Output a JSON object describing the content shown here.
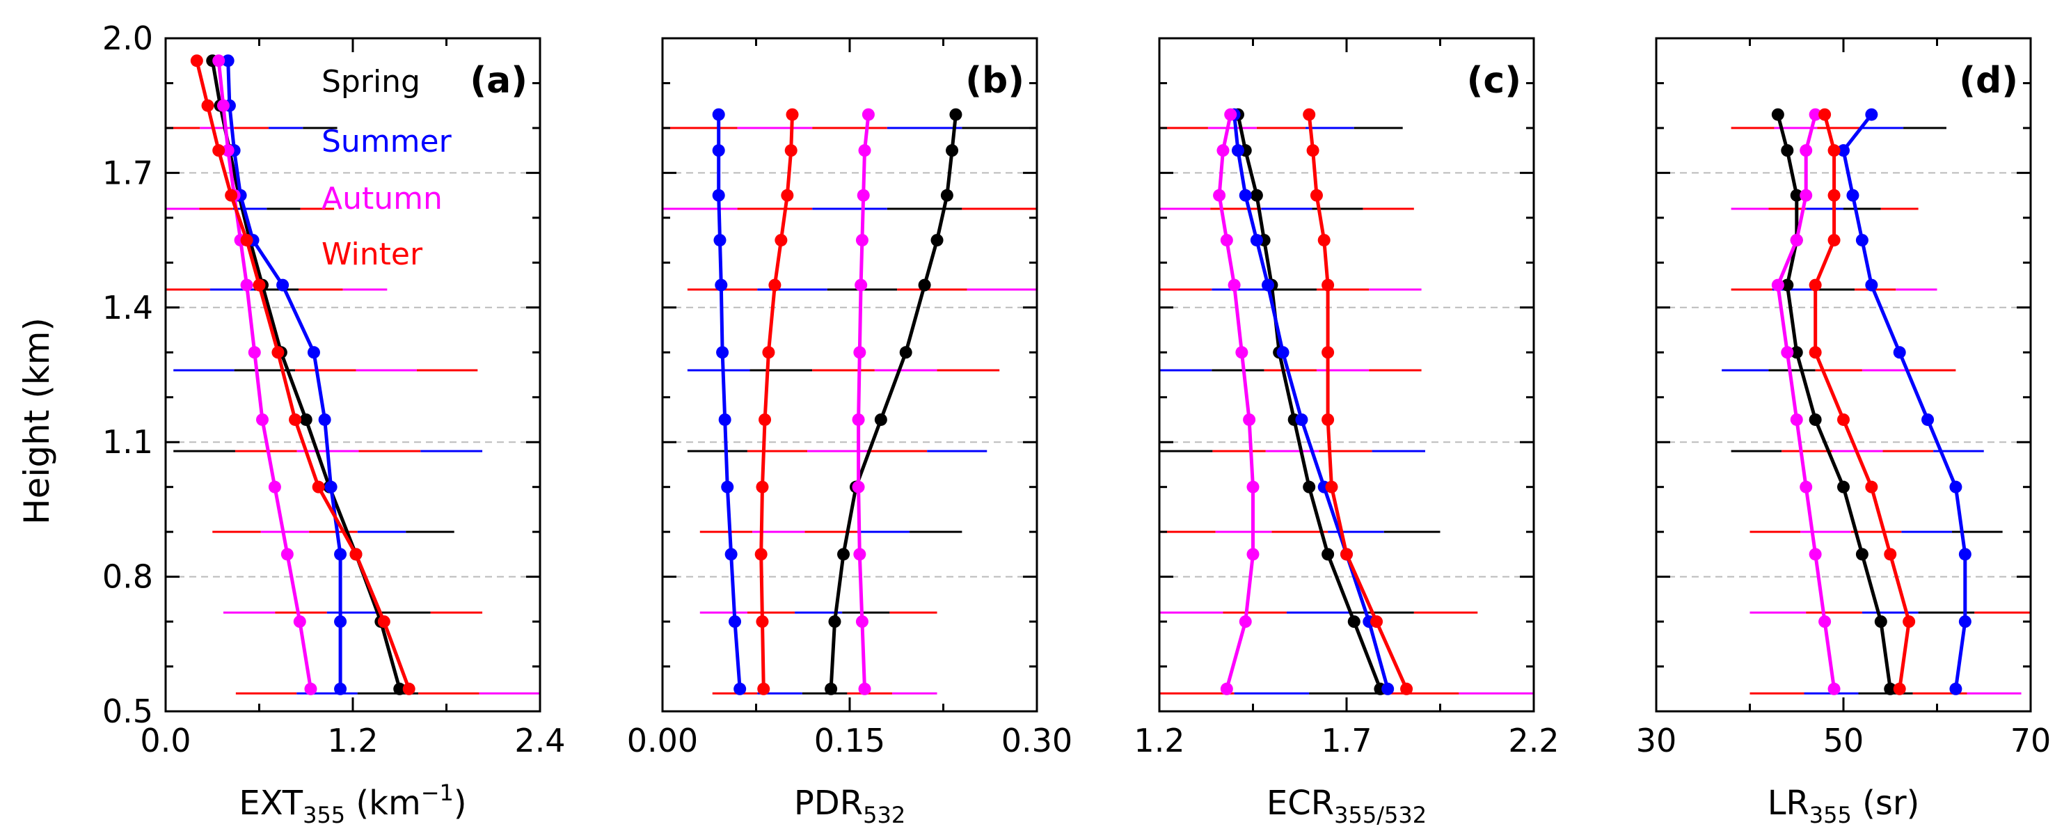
{
  "figure": {
    "ylabel": "Height (km)",
    "y_ticks": [
      "0.5",
      "0.8",
      "1.1",
      "1.4",
      "1.7",
      "2.0"
    ],
    "legend": [
      {
        "label": "Spring",
        "color": "#000000"
      },
      {
        "label": "Summer",
        "color": "#0000ff"
      },
      {
        "label": "Autumn",
        "color": "#ff00ff"
      },
      {
        "label": "Winter",
        "color": "#ff0000"
      }
    ]
  },
  "chart_data": [
    {
      "type": "line",
      "panel_label": "(a)",
      "xlabel_main": "EXT",
      "xlabel_sub": "355",
      "xlabel_tail": " (km",
      "xlabel_sup": "−1",
      "xlabel_end": ")",
      "xlim": [
        0.0,
        2.4
      ],
      "x_ticks": [
        "0.0",
        "1.2",
        "2.4"
      ],
      "ylim": [
        0.5,
        2.0
      ],
      "y_ticks": [
        "0.5",
        "0.8",
        "1.1",
        "1.4",
        "1.7",
        "2.0"
      ],
      "series": [
        {
          "name": "Spring",
          "color": "#000000",
          "x": [
            1.5,
            1.38,
            1.22,
            1.05,
            0.9,
            0.74,
            0.62,
            0.54,
            0.47,
            0.41,
            0.35,
            0.3
          ],
          "y": [
            0.55,
            0.7,
            0.85,
            1.0,
            1.15,
            1.3,
            1.45,
            1.55,
            1.65,
            1.75,
            1.85,
            1.95
          ]
        },
        {
          "name": "Summer",
          "color": "#0000ff",
          "x": [
            1.12,
            1.12,
            1.12,
            1.06,
            1.02,
            0.95,
            0.75,
            0.56,
            0.48,
            0.44,
            0.41,
            0.4
          ],
          "y": [
            0.55,
            0.7,
            0.85,
            1.0,
            1.15,
            1.3,
            1.45,
            1.55,
            1.65,
            1.75,
            1.85,
            1.95
          ]
        },
        {
          "name": "Autumn",
          "color": "#ff00ff",
          "x": [
            0.93,
            0.86,
            0.78,
            0.7,
            0.62,
            0.57,
            0.52,
            0.48,
            0.44,
            0.4,
            0.37,
            0.34
          ],
          "y": [
            0.55,
            0.7,
            0.85,
            1.0,
            1.15,
            1.3,
            1.45,
            1.55,
            1.65,
            1.75,
            1.85,
            1.95
          ]
        },
        {
          "name": "Winter",
          "color": "#ff0000",
          "x": [
            1.56,
            1.4,
            1.22,
            0.98,
            0.83,
            0.72,
            0.6,
            0.52,
            0.42,
            0.34,
            0.27,
            0.2
          ],
          "y": [
            0.55,
            0.7,
            0.85,
            1.0,
            1.15,
            1.3,
            1.45,
            1.55,
            1.65,
            1.75,
            1.85,
            1.95
          ]
        }
      ],
      "error_bars": [
        {
          "y": 1.8,
          "x_min": 0.0,
          "x_max": 1.1
        },
        {
          "y": 1.62,
          "x_min": 0.0,
          "x_max": 1.08
        },
        {
          "y": 1.44,
          "x_min": 0.0,
          "x_max": 1.42
        },
        {
          "y": 1.26,
          "x_min": 0.05,
          "x_max": 2.0
        },
        {
          "y": 1.08,
          "x_min": 0.05,
          "x_max": 2.03
        },
        {
          "y": 0.9,
          "x_min": 0.3,
          "x_max": 1.85
        },
        {
          "y": 0.72,
          "x_min": 0.37,
          "x_max": 2.03
        },
        {
          "y": 0.54,
          "x_min": 0.45,
          "x_max": 2.4
        }
      ]
    },
    {
      "type": "line",
      "panel_label": "(b)",
      "xlabel_main": "PDR",
      "xlabel_sub": "532",
      "xlim": [
        0.0,
        0.3
      ],
      "x_ticks": [
        "0.00",
        "0.15",
        "0.30"
      ],
      "ylim": [
        0.5,
        2.0
      ],
      "series": [
        {
          "name": "Spring",
          "color": "#000000",
          "x": [
            0.135,
            0.138,
            0.145,
            0.155,
            0.175,
            0.195,
            0.21,
            0.22,
            0.228,
            0.232,
            0.235
          ],
          "y": [
            0.55,
            0.7,
            0.85,
            1.0,
            1.15,
            1.3,
            1.45,
            1.55,
            1.65,
            1.75,
            1.83
          ]
        },
        {
          "name": "Summer",
          "color": "#0000ff",
          "x": [
            0.062,
            0.058,
            0.055,
            0.052,
            0.05,
            0.048,
            0.047,
            0.046,
            0.045,
            0.045,
            0.045
          ],
          "y": [
            0.55,
            0.7,
            0.85,
            1.0,
            1.15,
            1.3,
            1.45,
            1.55,
            1.65,
            1.75,
            1.83
          ]
        },
        {
          "name": "Autumn",
          "color": "#ff00ff",
          "x": [
            0.162,
            0.16,
            0.158,
            0.157,
            0.157,
            0.158,
            0.159,
            0.16,
            0.161,
            0.162,
            0.165
          ],
          "y": [
            0.55,
            0.7,
            0.85,
            1.0,
            1.15,
            1.3,
            1.45,
            1.55,
            1.65,
            1.75,
            1.83
          ]
        },
        {
          "name": "Winter",
          "color": "#ff0000",
          "x": [
            0.081,
            0.08,
            0.079,
            0.08,
            0.082,
            0.085,
            0.09,
            0.095,
            0.1,
            0.103,
            0.104
          ],
          "y": [
            0.55,
            0.7,
            0.85,
            1.0,
            1.15,
            1.3,
            1.45,
            1.55,
            1.65,
            1.75,
            1.83
          ]
        }
      ],
      "error_bars": [
        {
          "y": 1.8,
          "x_min": 0.0,
          "x_max": 0.3
        },
        {
          "y": 1.62,
          "x_min": 0.0,
          "x_max": 0.3
        },
        {
          "y": 1.44,
          "x_min": 0.02,
          "x_max": 0.3
        },
        {
          "y": 1.26,
          "x_min": 0.02,
          "x_max": 0.27
        },
        {
          "y": 1.08,
          "x_min": 0.02,
          "x_max": 0.26
        },
        {
          "y": 0.9,
          "x_min": 0.03,
          "x_max": 0.24
        },
        {
          "y": 0.72,
          "x_min": 0.03,
          "x_max": 0.22
        },
        {
          "y": 0.54,
          "x_min": 0.04,
          "x_max": 0.22
        }
      ]
    },
    {
      "type": "line",
      "panel_label": "(c)",
      "xlabel_main": "ECR",
      "xlabel_sub": "355/532",
      "xlim": [
        1.2,
        2.2
      ],
      "x_ticks": [
        "1.2",
        "1.7",
        "2.2"
      ],
      "ylim": [
        0.5,
        2.0
      ],
      "series": [
        {
          "name": "Spring",
          "color": "#000000",
          "x": [
            1.79,
            1.72,
            1.65,
            1.6,
            1.56,
            1.52,
            1.5,
            1.48,
            1.46,
            1.43,
            1.41
          ],
          "y": [
            0.55,
            0.7,
            0.85,
            1.0,
            1.15,
            1.3,
            1.45,
            1.55,
            1.65,
            1.75,
            1.83
          ]
        },
        {
          "name": "Summer",
          "color": "#0000ff",
          "x": [
            1.81,
            1.76,
            1.7,
            1.64,
            1.58,
            1.53,
            1.49,
            1.46,
            1.43,
            1.41,
            1.4
          ],
          "y": [
            0.55,
            0.7,
            0.85,
            1.0,
            1.15,
            1.3,
            1.45,
            1.55,
            1.65,
            1.75,
            1.83
          ]
        },
        {
          "name": "Autumn",
          "color": "#ff00ff",
          "x": [
            1.38,
            1.43,
            1.45,
            1.45,
            1.44,
            1.42,
            1.4,
            1.38,
            1.36,
            1.37,
            1.39
          ],
          "y": [
            0.55,
            0.7,
            0.85,
            1.0,
            1.15,
            1.3,
            1.45,
            1.55,
            1.65,
            1.75,
            1.83
          ]
        },
        {
          "name": "Winter",
          "color": "#ff0000",
          "x": [
            1.86,
            1.78,
            1.7,
            1.66,
            1.65,
            1.65,
            1.65,
            1.64,
            1.62,
            1.61,
            1.6
          ],
          "y": [
            0.55,
            0.7,
            0.85,
            1.0,
            1.15,
            1.3,
            1.45,
            1.55,
            1.65,
            1.75,
            1.83
          ]
        }
      ],
      "error_bars": [
        {
          "y": 1.8,
          "x_min": 1.2,
          "x_max": 1.85
        },
        {
          "y": 1.62,
          "x_min": 1.2,
          "x_max": 1.88
        },
        {
          "y": 1.44,
          "x_min": 1.2,
          "x_max": 1.9
        },
        {
          "y": 1.26,
          "x_min": 1.2,
          "x_max": 1.9
        },
        {
          "y": 1.08,
          "x_min": 1.2,
          "x_max": 1.91
        },
        {
          "y": 0.9,
          "x_min": 1.2,
          "x_max": 1.95
        },
        {
          "y": 0.72,
          "x_min": 1.2,
          "x_max": 2.05
        },
        {
          "y": 0.54,
          "x_min": 1.2,
          "x_max": 2.2
        }
      ]
    },
    {
      "type": "line",
      "panel_label": "(d)",
      "xlabel_main": "LR",
      "xlabel_sub": "355",
      "xlabel_tail": " (sr)",
      "xlim": [
        30,
        70
      ],
      "x_ticks": [
        "30",
        "50",
        "70"
      ],
      "ylim": [
        0.5,
        2.0
      ],
      "series": [
        {
          "name": "Spring",
          "color": "#000000",
          "x": [
            55,
            54,
            52,
            50,
            47,
            45,
            44,
            45,
            45,
            44,
            43
          ],
          "y": [
            0.55,
            0.7,
            0.85,
            1.0,
            1.15,
            1.3,
            1.45,
            1.55,
            1.65,
            1.75,
            1.83
          ]
        },
        {
          "name": "Summer",
          "color": "#0000ff",
          "x": [
            62,
            63,
            63,
            62,
            59,
            56,
            53,
            52,
            51,
            50,
            53
          ],
          "y": [
            0.55,
            0.7,
            0.85,
            1.0,
            1.15,
            1.3,
            1.45,
            1.55,
            1.65,
            1.75,
            1.83
          ]
        },
        {
          "name": "Autumn",
          "color": "#ff00ff",
          "x": [
            49,
            48,
            47,
            46,
            45,
            44,
            43,
            45,
            46,
            46,
            47
          ],
          "y": [
            0.55,
            0.7,
            0.85,
            1.0,
            1.15,
            1.3,
            1.45,
            1.55,
            1.65,
            1.75,
            1.83
          ]
        },
        {
          "name": "Winter",
          "color": "#ff0000",
          "x": [
            56,
            57,
            55,
            53,
            50,
            47,
            47,
            49,
            49,
            49,
            48
          ],
          "y": [
            0.55,
            0.7,
            0.85,
            1.0,
            1.15,
            1.3,
            1.45,
            1.55,
            1.65,
            1.75,
            1.83
          ]
        }
      ],
      "error_bars": [
        {
          "y": 1.8,
          "x_min": 38,
          "x_max": 61
        },
        {
          "y": 1.62,
          "x_min": 38,
          "x_max": 58
        },
        {
          "y": 1.44,
          "x_min": 38,
          "x_max": 60
        },
        {
          "y": 1.26,
          "x_min": 37,
          "x_max": 62
        },
        {
          "y": 1.08,
          "x_min": 38,
          "x_max": 65
        },
        {
          "y": 0.9,
          "x_min": 40,
          "x_max": 67
        },
        {
          "y": 0.72,
          "x_min": 40,
          "x_max": 70
        },
        {
          "y": 0.54,
          "x_min": 40,
          "x_max": 69
        }
      ]
    }
  ]
}
